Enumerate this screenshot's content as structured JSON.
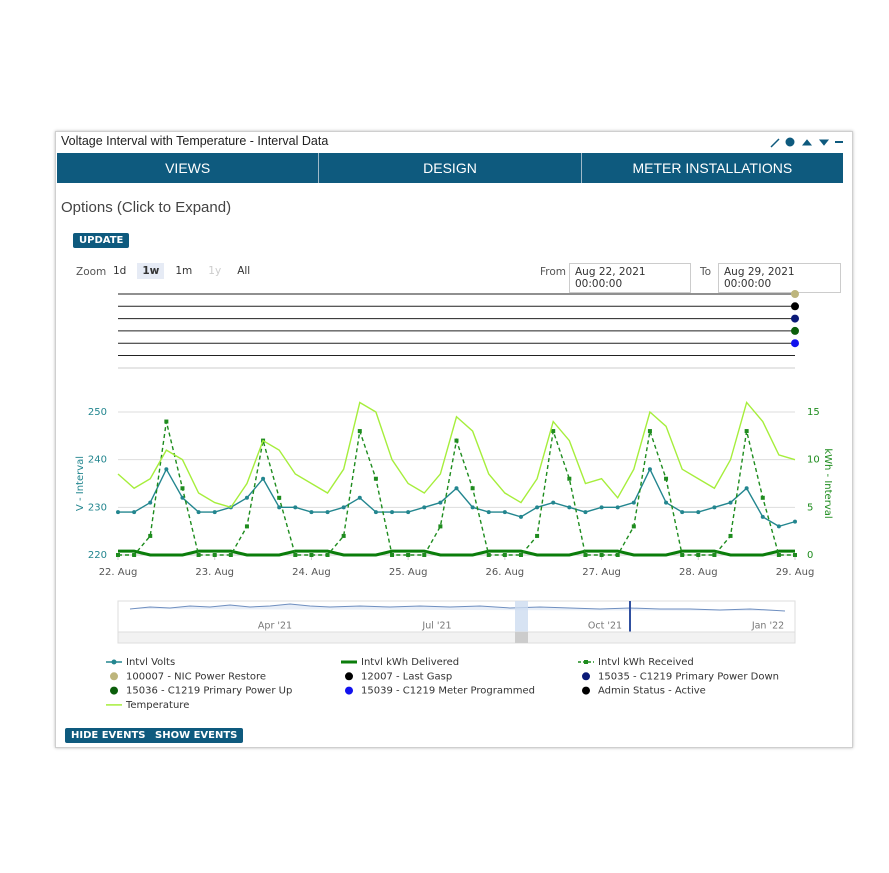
{
  "panel": {
    "title": "Voltage Interval with Temperature - Interval Data"
  },
  "tabs": [
    "VIEWS",
    "DESIGN",
    "METER INSTALLATIONS"
  ],
  "options": "Options (Click to Expand)",
  "update_button": "UPDATE",
  "zoom": {
    "label": "Zoom",
    "buttons": [
      "1d",
      "1w",
      "1m",
      "1y",
      "All"
    ],
    "selected": "1w",
    "disabled": "1y"
  },
  "range": {
    "from_label": "From",
    "from": "Aug 22, 2021 00:00:00",
    "to_label": "To",
    "to": "Aug 29, 2021 00:00:00"
  },
  "chart_data": {
    "type": "line",
    "x": [
      0,
      4,
      8,
      12,
      16,
      20,
      24,
      28,
      32,
      36,
      40,
      44,
      48,
      52,
      56,
      60,
      64,
      68,
      72,
      76,
      80,
      84,
      88,
      92,
      96,
      100,
      104,
      108,
      112,
      116,
      120,
      124,
      128,
      132,
      136,
      140,
      144,
      148,
      152,
      156,
      160,
      164,
      168
    ],
    "xlim": [
      0,
      168
    ],
    "xticks": [
      {
        "value": 0,
        "label": "22. Aug"
      },
      {
        "value": 24,
        "label": "23. Aug"
      },
      {
        "value": 48,
        "label": "24. Aug"
      },
      {
        "value": 72,
        "label": "25. Aug"
      },
      {
        "value": 96,
        "label": "26. Aug"
      },
      {
        "value": 120,
        "label": "27. Aug"
      },
      {
        "value": 144,
        "label": "28. Aug"
      },
      {
        "value": 168,
        "label": "29. Aug"
      }
    ],
    "ylabel": "V - Interval",
    "y2label": "kWh - Interval",
    "ylim": [
      220,
      250
    ],
    "yticks": [
      220,
      230,
      240,
      250
    ],
    "y2lim": [
      0,
      15
    ],
    "y2ticks": [
      0,
      5,
      10,
      15
    ],
    "grid": true,
    "series": [
      {
        "name": "Intvl Volts",
        "color": "#23868f",
        "marker": "circle",
        "values": [
          229,
          229,
          231,
          238,
          232,
          229,
          229,
          230,
          232,
          236,
          230,
          230,
          229,
          229,
          230,
          232,
          229,
          229,
          229,
          230,
          231,
          234,
          230,
          229,
          229,
          228,
          230,
          231,
          230,
          229,
          230,
          230,
          231,
          238,
          231,
          229,
          229,
          230,
          231,
          234,
          228,
          226,
          227
        ]
      },
      {
        "name": "Intvl kWh Delivered",
        "color": "#0b7d0b",
        "axis": "y2",
        "line_width": 3,
        "values": [
          0.4,
          0.4,
          0,
          0,
          0,
          0.4,
          0.4,
          0.4,
          0,
          0,
          0,
          0.4,
          0.4,
          0.4,
          0,
          0,
          0,
          0.4,
          0.4,
          0.4,
          0,
          0,
          0,
          0.4,
          0.4,
          0.4,
          0,
          0,
          0,
          0.4,
          0.4,
          0.4,
          0,
          0,
          0,
          0.4,
          0.4,
          0.4,
          0,
          0,
          0,
          0.4,
          0.4
        ]
      },
      {
        "name": "Intvl kWh Received",
        "color": "#1e8c1e",
        "axis": "y2",
        "dashed": true,
        "marker": "square",
        "values": [
          0,
          0,
          2,
          14,
          7,
          0,
          0,
          0,
          3,
          12,
          6,
          0,
          0,
          0,
          2,
          13,
          8,
          0,
          0,
          0,
          3,
          12,
          7,
          0,
          0,
          0,
          2,
          13,
          8,
          0,
          0,
          0,
          3,
          13,
          8,
          0,
          0,
          0,
          2,
          13,
          6,
          0,
          0
        ]
      },
      {
        "name": "Temperature",
        "color": "#a6ee3c",
        "values": [
          237,
          234,
          236,
          242,
          240,
          233,
          231,
          230,
          235,
          244,
          242,
          237,
          235,
          233,
          238,
          252,
          250,
          240,
          235,
          233,
          237,
          249,
          246,
          237,
          233,
          231,
          236,
          248,
          244,
          235,
          236,
          232,
          238,
          250,
          247,
          238,
          236,
          234,
          240,
          252,
          248,
          241,
          240
        ]
      }
    ],
    "events": [
      {
        "name": "100007 - NIC Power Restore",
        "color": "#bdb57c",
        "x": 168
      },
      {
        "name": "12007 - Last Gasp",
        "color": "#000000",
        "x": 168
      },
      {
        "name": "15035 - C1219 Primary Power Down",
        "color": "#0b1a78",
        "x": 168
      },
      {
        "name": "15036 - C1219 Primary Power Up",
        "color": "#0b5e0b",
        "x": 168
      },
      {
        "name": "15039 - C1219 Meter Programmed",
        "color": "#1212ee",
        "x": 168
      },
      {
        "name": "Admin Status - Active",
        "color": "#000000"
      }
    ]
  },
  "navigator": {
    "labels": [
      "Apr '21",
      "Jul '21",
      "Oct '21",
      "Jan '22"
    ]
  },
  "buttons": [
    "HIDE EVENTS",
    "SHOW EVENTS"
  ]
}
